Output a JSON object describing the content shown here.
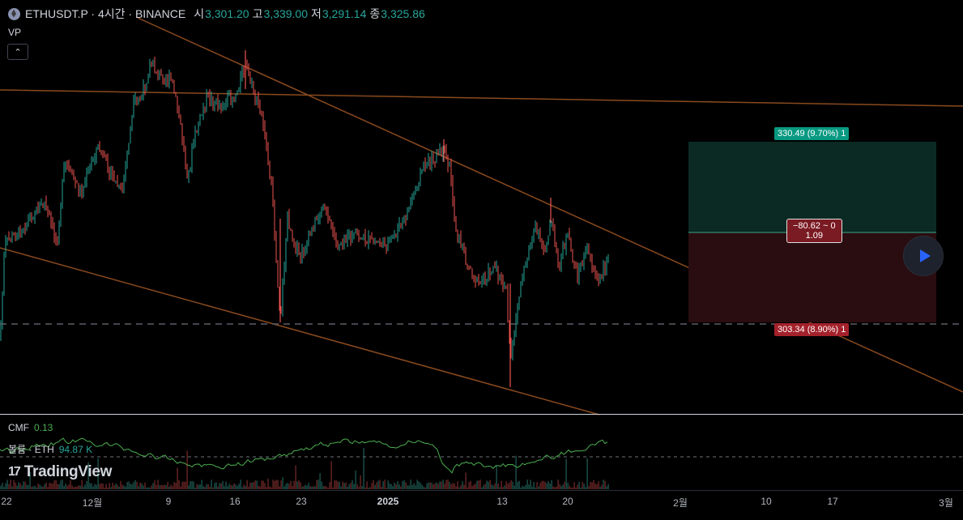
{
  "header": {
    "title": "ETHUSDT.P · 4시간 · BINANCE",
    "icon": "ethereum-icon",
    "ohlc": [
      {
        "k": "시",
        "v": "3,301.20"
      },
      {
        "k": "고",
        "v": "3,339.00"
      },
      {
        "k": "저",
        "v": "3,291.14"
      },
      {
        "k": "종",
        "v": "3,325.86"
      }
    ]
  },
  "indicators": {
    "vp_label": "VP",
    "cmf_label": "CMF",
    "cmf_value": "0.13",
    "volume_label": "볼륨 · ETH",
    "volume_value": "94.87 K"
  },
  "logo": {
    "mark": "17",
    "text": "TradingView"
  },
  "position_tool": {
    "target_label": "330.49 (9.70%) 1",
    "stop_label": "303.34 (8.90%) 1",
    "mid_line1": "−80.62 ~ 0",
    "mid_line2": "1.09"
  },
  "time_axis": {
    "ticks": [
      {
        "label": "22",
        "bold": false
      },
      {
        "label": "12월",
        "bold": false
      },
      {
        "label": "9",
        "bold": false
      },
      {
        "label": "16",
        "bold": false
      },
      {
        "label": "23",
        "bold": false
      },
      {
        "label": "2025",
        "bold": true
      },
      {
        "label": "13",
        "bold": false
      },
      {
        "label": "20",
        "bold": false
      },
      {
        "label": "2월",
        "bold": false
      },
      {
        "label": "10",
        "bold": false
      },
      {
        "label": "17",
        "bold": false
      },
      {
        "label": "3월",
        "bold": false
      }
    ]
  },
  "colors": {
    "up": "#26a69a",
    "down": "#ef5350",
    "trendline": "#8a4a1e",
    "cmf_line": "#4caf50",
    "target_zone": "#0b2a24",
    "stop_zone": "#2a0d10"
  }
}
